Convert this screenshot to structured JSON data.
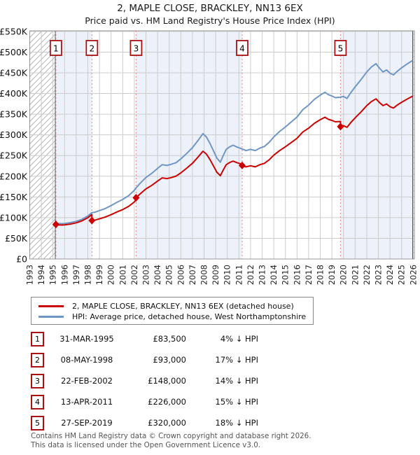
{
  "title": "2, MAPLE CLOSE, BRACKLEY, NN13 6EX",
  "subtitle": "Price paid vs. HM Land Registry's House Price Index (HPI)",
  "legend": [
    {
      "label": "2, MAPLE CLOSE, BRACKLEY, NN13 6EX (detached house)",
      "color": "#cc0000"
    },
    {
      "label": "HPI: Average price, detached house, West Northamptonshire",
      "color": "#6f97c6"
    }
  ],
  "sales": [
    {
      "num": "1",
      "date": "31-MAR-1995",
      "price": "£83,500",
      "vs_hpi": "4% ↓ HPI"
    },
    {
      "num": "2",
      "date": "08-MAY-1998",
      "price": "£93,000",
      "vs_hpi": "17% ↓ HPI"
    },
    {
      "num": "3",
      "date": "22-FEB-2002",
      "price": "£148,000",
      "vs_hpi": "14% ↓ HPI"
    },
    {
      "num": "4",
      "date": "13-APR-2011",
      "price": "£226,000",
      "vs_hpi": "15% ↓ HPI"
    },
    {
      "num": "5",
      "date": "27-SEP-2019",
      "price": "£320,000",
      "vs_hpi": "18% ↓ HPI"
    }
  ],
  "footer": {
    "line1": "Contains HM Land Registry data © Crown copyright and database right 2026.",
    "line2": "This data is licensed under the Open Government Licence v3.0."
  },
  "chart_data": {
    "type": "line",
    "unit": "thousand GBP",
    "xlim": [
      1993,
      2026.1
    ],
    "ylim": [
      0,
      551.5
    ],
    "x_ticks": [
      1993,
      1994,
      1995,
      1996,
      1997,
      1998,
      1999,
      2000,
      2001,
      2002,
      2003,
      2004,
      2005,
      2006,
      2007,
      2008,
      2009,
      2010,
      2011,
      2012,
      2013,
      2014,
      2015,
      2016,
      2017,
      2018,
      2019,
      2020,
      2021,
      2022,
      2023,
      2024,
      2025,
      2026
    ],
    "y_ticks": [
      {
        "value": 0,
        "label": "£0"
      },
      {
        "value": 50,
        "label": "£50K"
      },
      {
        "value": 100,
        "label": "£100K"
      },
      {
        "value": 150,
        "label": "£150K"
      },
      {
        "value": 200,
        "label": "£200K"
      },
      {
        "value": 250,
        "label": "£250K"
      },
      {
        "value": 300,
        "label": "£300K"
      },
      {
        "value": 350,
        "label": "£350K"
      },
      {
        "value": 400,
        "label": "£400K"
      },
      {
        "value": 450,
        "label": "£450K"
      },
      {
        "value": 500,
        "label": "£500K"
      },
      {
        "value": 550,
        "label": "£550K"
      }
    ],
    "colors": {
      "hpi_line": "#6f97c6",
      "price_line": "#cc0000",
      "grid": "#cccccc",
      "band": "#edf1fa",
      "sale_dashed": "#ee8282",
      "marker_box_border": "#aa1111",
      "hatch_line": "#b5b5b5",
      "border": "#999999",
      "data_edge": "#555555"
    },
    "bands": [
      [
        1995.25,
        1998.35
      ],
      [
        2002.15,
        2011.28
      ],
      [
        2019.74,
        2025.95
      ]
    ],
    "hatch_regions": [
      [
        1993,
        1995.2
      ],
      [
        2025.95,
        2026.1
      ]
    ],
    "sale_markers": [
      {
        "n": "1",
        "year": 1995.25,
        "value": 83.5
      },
      {
        "n": "2",
        "year": 1998.35,
        "value": 93
      },
      {
        "n": "3",
        "year": 2002.15,
        "value": 148
      },
      {
        "n": "4",
        "year": 2011.28,
        "value": 226
      },
      {
        "n": "5",
        "year": 2019.74,
        "value": 320
      }
    ],
    "series": [
      {
        "name": "HPI: Average price, detached house, West Northamptonshire",
        "color": "#6f97c6",
        "points": [
          [
            1995.25,
            87
          ],
          [
            1995.5,
            86
          ],
          [
            1995.75,
            85.5
          ],
          [
            1996,
            86
          ],
          [
            1996.5,
            88
          ],
          [
            1997,
            91
          ],
          [
            1997.5,
            96
          ],
          [
            1998,
            104
          ],
          [
            1998.35,
            112
          ],
          [
            1998.6,
            113
          ],
          [
            1999,
            117
          ],
          [
            1999.5,
            122
          ],
          [
            2000,
            129
          ],
          [
            2000.5,
            137
          ],
          [
            2001,
            144
          ],
          [
            2001.5,
            153
          ],
          [
            2002,
            166
          ],
          [
            2002.15,
            172
          ],
          [
            2002.5,
            183
          ],
          [
            2003,
            197
          ],
          [
            2003.5,
            207
          ],
          [
            2004,
            219
          ],
          [
            2004.4,
            228
          ],
          [
            2004.8,
            226
          ],
          [
            2005.2,
            229
          ],
          [
            2005.6,
            233
          ],
          [
            2006,
            242
          ],
          [
            2006.5,
            255
          ],
          [
            2007,
            269
          ],
          [
            2007.5,
            287
          ],
          [
            2007.9,
            303
          ],
          [
            2008.2,
            295
          ],
          [
            2008.5,
            280
          ],
          [
            2008.8,
            262
          ],
          [
            2009.1,
            244
          ],
          [
            2009.4,
            234
          ],
          [
            2009.6,
            247
          ],
          [
            2009.9,
            265
          ],
          [
            2010.2,
            271
          ],
          [
            2010.5,
            275
          ],
          [
            2010.8,
            271
          ],
          [
            2011.28,
            266
          ],
          [
            2011.6,
            262
          ],
          [
            2012,
            265
          ],
          [
            2012.4,
            262
          ],
          [
            2012.8,
            268
          ],
          [
            2013.2,
            272
          ],
          [
            2013.6,
            282
          ],
          [
            2014,
            295
          ],
          [
            2014.5,
            308
          ],
          [
            2015,
            319
          ],
          [
            2015.5,
            331
          ],
          [
            2016,
            343
          ],
          [
            2016.5,
            361
          ],
          [
            2017,
            372
          ],
          [
            2017.5,
            386
          ],
          [
            2018,
            396
          ],
          [
            2018.4,
            403
          ],
          [
            2018.7,
            397
          ],
          [
            2019,
            394
          ],
          [
            2019.3,
            390
          ],
          [
            2019.74,
            391
          ],
          [
            2020,
            393
          ],
          [
            2020.3,
            388
          ],
          [
            2020.6,
            401
          ],
          [
            2021,
            416
          ],
          [
            2021.5,
            433
          ],
          [
            2022,
            452
          ],
          [
            2022.4,
            464
          ],
          [
            2022.8,
            472
          ],
          [
            2023.1,
            461
          ],
          [
            2023.4,
            452
          ],
          [
            2023.7,
            457
          ],
          [
            2024,
            449
          ],
          [
            2024.3,
            445
          ],
          [
            2024.6,
            453
          ],
          [
            2025,
            462
          ],
          [
            2025.4,
            470
          ],
          [
            2025.9,
            479
          ]
        ]
      },
      {
        "name": "2, MAPLE CLOSE, BRACKLEY, NN13 6EX (detached house)",
        "color": "#cc0000",
        "points": [
          [
            1995.25,
            83.5
          ],
          [
            1995.5,
            82.6
          ],
          [
            1995.75,
            82.1
          ],
          [
            1996,
            82.6
          ],
          [
            1996.5,
            84.5
          ],
          [
            1997,
            87.4
          ],
          [
            1997.5,
            92.2
          ],
          [
            1998,
            99.8
          ],
          [
            1998.35,
            107.5
          ],
          [
            1998.35,
            93
          ],
          [
            1998.6,
            93.8
          ],
          [
            1999,
            97.1
          ],
          [
            1999.5,
            101.3
          ],
          [
            2000,
            107.1
          ],
          [
            2000.5,
            113.7
          ],
          [
            2001,
            119.5
          ],
          [
            2001.5,
            127
          ],
          [
            2002,
            137.8
          ],
          [
            2002.15,
            142.8
          ],
          [
            2002.15,
            148
          ],
          [
            2002.5,
            157.4
          ],
          [
            2003,
            169.4
          ],
          [
            2003.5,
            178
          ],
          [
            2004,
            188.3
          ],
          [
            2004.4,
            196.1
          ],
          [
            2004.8,
            194.4
          ],
          [
            2005.2,
            196.9
          ],
          [
            2005.6,
            200.4
          ],
          [
            2006,
            208.1
          ],
          [
            2006.5,
            219.3
          ],
          [
            2007,
            231.3
          ],
          [
            2007.5,
            246.8
          ],
          [
            2007.9,
            260.6
          ],
          [
            2008.2,
            253.7
          ],
          [
            2008.5,
            240.8
          ],
          [
            2008.8,
            225.3
          ],
          [
            2009.1,
            209.8
          ],
          [
            2009.4,
            201.2
          ],
          [
            2009.6,
            212.4
          ],
          [
            2009.9,
            227.9
          ],
          [
            2010.2,
            233.1
          ],
          [
            2010.5,
            236.5
          ],
          [
            2010.8,
            233.1
          ],
          [
            2011.28,
            228.8
          ],
          [
            2011.28,
            226
          ],
          [
            2011.6,
            222.7
          ],
          [
            2012,
            225.3
          ],
          [
            2012.4,
            222.7
          ],
          [
            2012.8,
            227.8
          ],
          [
            2013.2,
            231.2
          ],
          [
            2013.6,
            239.7
          ],
          [
            2014,
            250.8
          ],
          [
            2014.5,
            261.8
          ],
          [
            2015,
            271.2
          ],
          [
            2015.5,
            281.4
          ],
          [
            2016,
            291.6
          ],
          [
            2016.5,
            306.9
          ],
          [
            2017,
            316.2
          ],
          [
            2017.5,
            328.1
          ],
          [
            2018,
            336.6
          ],
          [
            2018.4,
            342.6
          ],
          [
            2018.7,
            337.5
          ],
          [
            2019,
            334.9
          ],
          [
            2019.3,
            331.5
          ],
          [
            2019.74,
            332.4
          ],
          [
            2019.74,
            320
          ],
          [
            2020,
            322.3
          ],
          [
            2020.3,
            318.2
          ],
          [
            2020.6,
            328.8
          ],
          [
            2021,
            341.1
          ],
          [
            2021.5,
            355.1
          ],
          [
            2022,
            370.6
          ],
          [
            2022.4,
            380.5
          ],
          [
            2022.8,
            387
          ],
          [
            2023.1,
            378
          ],
          [
            2023.4,
            370.6
          ],
          [
            2023.7,
            374.7
          ],
          [
            2024,
            368.2
          ],
          [
            2024.3,
            364.9
          ],
          [
            2024.6,
            371.5
          ],
          [
            2025,
            378.8
          ],
          [
            2025.4,
            385.4
          ],
          [
            2025.9,
            392.8
          ]
        ]
      }
    ]
  }
}
